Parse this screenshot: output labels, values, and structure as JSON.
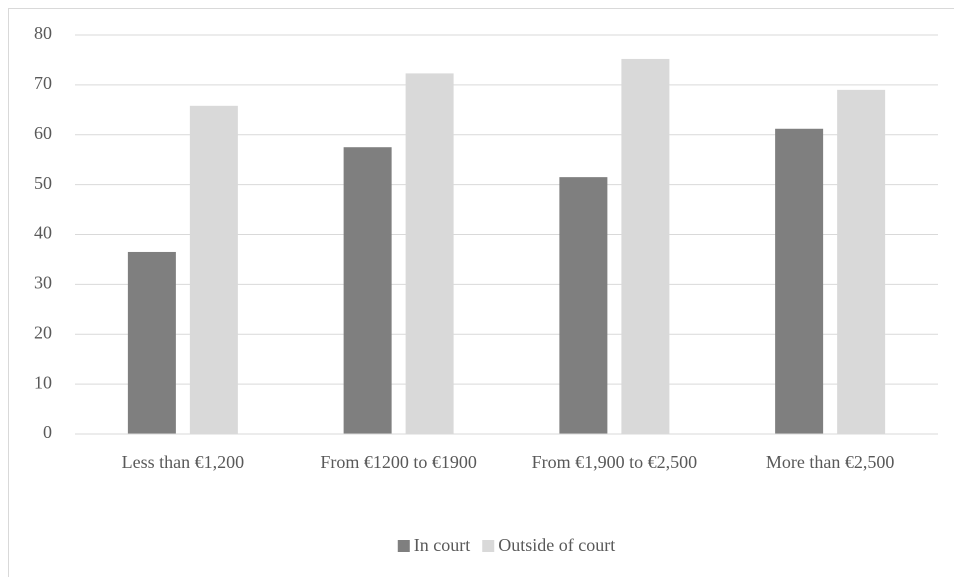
{
  "chart_data": {
    "type": "bar",
    "categories": [
      "Less than €1,200",
      "From €1200 to €1900",
      "From €1,900 to €2,500",
      "More than €2,500"
    ],
    "series": [
      {
        "name": "In court",
        "color": "#7f7f7f",
        "values": [
          36.5,
          57.5,
          51.5,
          61.2
        ]
      },
      {
        "name": "Outside of court",
        "color": "#d9d9d9",
        "values": [
          65.8,
          72.3,
          75.2,
          69
        ]
      }
    ],
    "ylim": [
      0,
      80
    ],
    "yticks": [
      0,
      10,
      20,
      30,
      40,
      50,
      60,
      70,
      80
    ],
    "grid": true,
    "legend": "bottom"
  }
}
